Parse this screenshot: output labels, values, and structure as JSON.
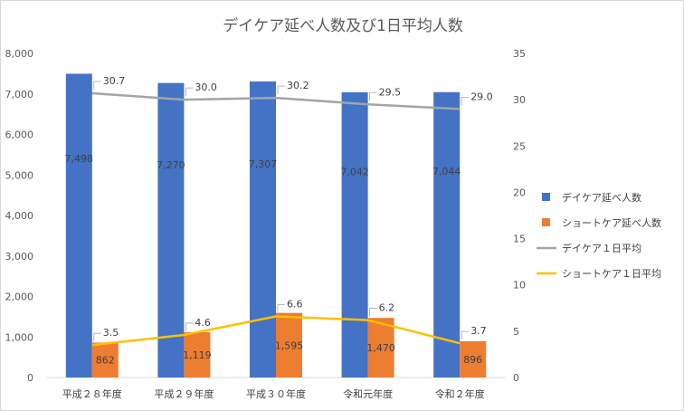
{
  "chart_data": {
    "type": "bar",
    "title": "デイケア延べ人数及び1日平均人数",
    "categories": [
      "平成２８年度",
      "平成２９年度",
      "平成３０年度",
      "令和元年度",
      "令和２年度"
    ],
    "series": [
      {
        "name": "デイケア延べ人数",
        "type": "bar",
        "axis": "left",
        "color": "#4472C4",
        "values": [
          7498,
          7270,
          7307,
          7042,
          7044
        ],
        "labels": [
          "7,498",
          "7,270",
          "7,307",
          "7,042",
          "7,044"
        ]
      },
      {
        "name": "ショートケア延べ人数",
        "type": "bar",
        "axis": "left",
        "color": "#ED7D31",
        "values": [
          862,
          1119,
          1595,
          1470,
          896
        ],
        "labels": [
          "862",
          "1,119",
          "1,595",
          "1,470",
          "896"
        ]
      },
      {
        "name": "デイケア１日平均",
        "type": "line",
        "axis": "right",
        "color": "#A5A5A5",
        "values": [
          30.7,
          30.0,
          30.2,
          29.5,
          29.0
        ],
        "labels": [
          "30.7",
          "30.0",
          "30.2",
          "29.5",
          "29.0"
        ]
      },
      {
        "name": "ショートケア１日平均",
        "type": "line",
        "axis": "right",
        "color": "#FFC000",
        "values": [
          3.5,
          4.6,
          6.6,
          6.2,
          3.7
        ],
        "labels": [
          "3.5",
          "4.6",
          "6.6",
          "6.2",
          "3.7"
        ]
      }
    ],
    "y_left": {
      "min": 0,
      "max": 8000,
      "ticks": [
        "0",
        "1,000",
        "2,000",
        "3,000",
        "4,000",
        "5,000",
        "6,000",
        "7,000",
        "8,000"
      ]
    },
    "y_right": {
      "min": 0,
      "max": 35,
      "ticks": [
        "0",
        "5",
        "10",
        "15",
        "20",
        "25",
        "30",
        "35"
      ]
    },
    "legend_position": "right",
    "grid": false
  }
}
